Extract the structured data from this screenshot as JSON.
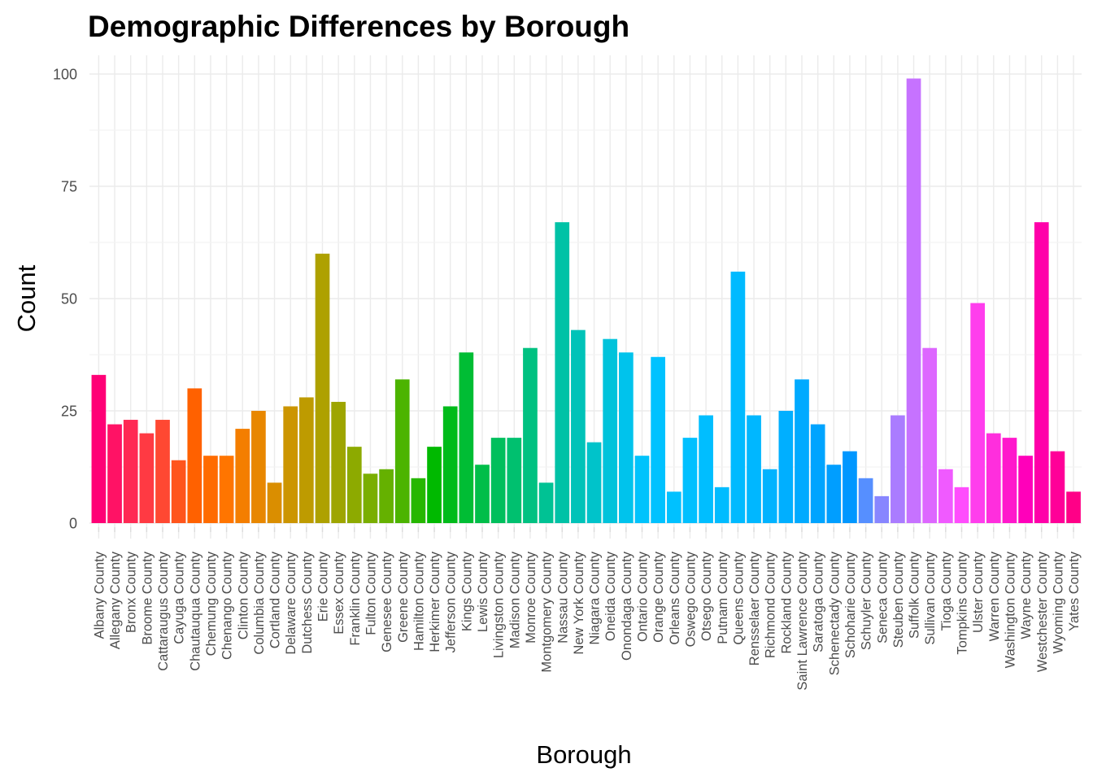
{
  "chart_data": {
    "type": "bar",
    "title": "Demographic Differences by Borough",
    "xlabel": "Borough",
    "ylabel": "Count",
    "ylim": [
      0,
      100
    ],
    "yticks": [
      0,
      25,
      50,
      75,
      100
    ],
    "grid": true,
    "legend": "none",
    "categories": [
      "Albany County",
      "Allegany County",
      "Bronx County",
      "Broome County",
      "Cattaraugus County",
      "Cayuga County",
      "Chautauqua County",
      "Chemung County",
      "Chenango County",
      "Clinton County",
      "Columbia County",
      "Cortland County",
      "Delaware County",
      "Dutchess County",
      "Erie County",
      "Essex County",
      "Franklin County",
      "Fulton County",
      "Genesee County",
      "Greene County",
      "Hamilton County",
      "Herkimer County",
      "Jefferson County",
      "Kings County",
      "Lewis County",
      "Livingston County",
      "Madison County",
      "Monroe County",
      "Montgomery County",
      "Nassau County",
      "New York County",
      "Niagara County",
      "Oneida County",
      "Onondaga County",
      "Ontario County",
      "Orange County",
      "Orleans County",
      "Oswego County",
      "Otsego County",
      "Putnam County",
      "Queens County",
      "Rensselaer County",
      "Richmond County",
      "Rockland County",
      "Saint Lawrence County",
      "Saratoga County",
      "Schenectady County",
      "Schoharie County",
      "Schuyler County",
      "Seneca County",
      "Steuben County",
      "Suffolk County",
      "Sullivan County",
      "Tioga County",
      "Tompkins County",
      "Ulster County",
      "Warren County",
      "Washington County",
      "Wayne County",
      "Westchester County",
      "Wyoming County",
      "Yates County"
    ],
    "values": [
      33,
      22,
      23,
      20,
      23,
      14,
      30,
      15,
      15,
      21,
      25,
      9,
      26,
      28,
      60,
      27,
      17,
      11,
      12,
      32,
      10,
      17,
      26,
      38,
      13,
      19,
      19,
      39,
      9,
      67,
      43,
      18,
      41,
      38,
      15,
      37,
      7,
      19,
      24,
      8,
      56,
      24,
      12,
      25,
      32,
      22,
      13,
      16,
      10,
      6,
      24,
      99,
      39,
      12,
      8,
      49,
      20,
      19,
      15,
      67,
      16,
      7
    ]
  }
}
